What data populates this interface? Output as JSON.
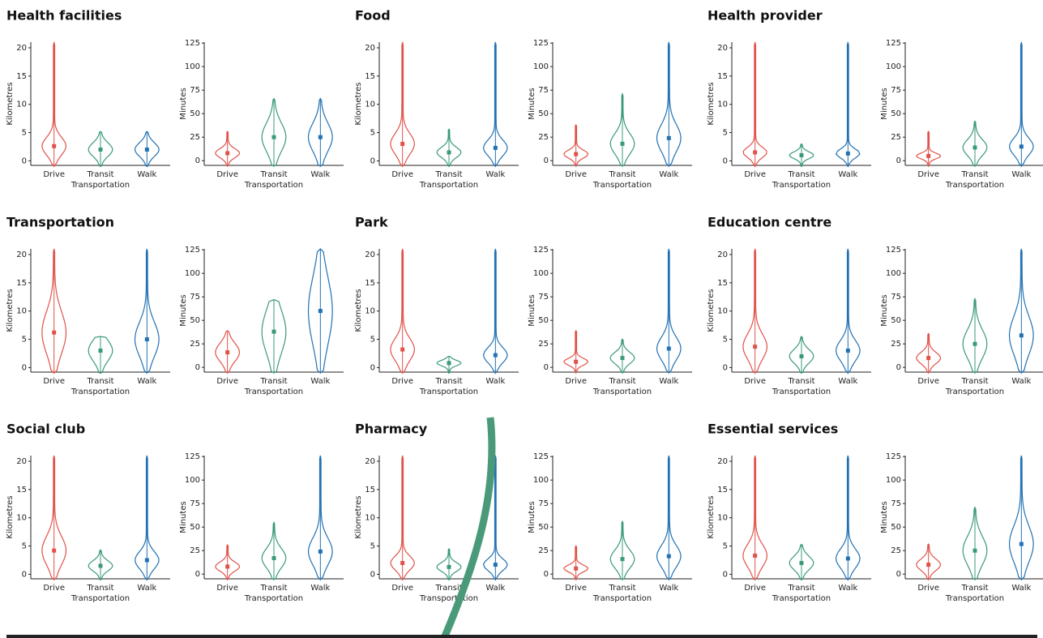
{
  "chart_data": [
    {
      "type": "violin",
      "title": "Health facilities",
      "y_label": "Kilometres",
      "x_label": "Transportation",
      "categories": [
        "Drive",
        "Transit",
        "Walk"
      ],
      "medians": [
        2.6,
        2.0,
        2.0
      ],
      "maxima": [
        21,
        5.2,
        5.2
      ],
      "colors": [
        "#e0524a",
        "#3a9a76",
        "#2271b3"
      ],
      "ylim": [
        -0.8,
        21
      ],
      "yticks": [
        0,
        5,
        10,
        15,
        20
      ]
    },
    {
      "type": "violin",
      "y_label": "Minutes",
      "x_label": "Transportation",
      "categories": [
        "Drive",
        "Transit",
        "Walk"
      ],
      "medians": [
        8,
        25,
        25
      ],
      "maxima": [
        31,
        66,
        66
      ],
      "colors": [
        "#e0524a",
        "#3a9a76",
        "#2271b3"
      ],
      "ylim": [
        -5,
        126
      ],
      "yticks": [
        0,
        25,
        50,
        75,
        100,
        125
      ]
    },
    {
      "type": "violin",
      "title": "Food",
      "y_label": "Kilometres",
      "x_label": "Transportation",
      "categories": [
        "Drive",
        "Transit",
        "Walk"
      ],
      "medians": [
        3.0,
        1.5,
        2.3
      ],
      "maxima": [
        21,
        5.6,
        21
      ],
      "colors": [
        "#e0524a",
        "#3a9a76",
        "#2271b3"
      ],
      "ylim": [
        -0.8,
        21
      ],
      "yticks": [
        0,
        5,
        10,
        15,
        20
      ]
    },
    {
      "type": "violin",
      "y_label": "Minutes",
      "x_label": "Transportation",
      "categories": [
        "Drive",
        "Transit",
        "Walk"
      ],
      "medians": [
        7,
        18,
        24
      ],
      "maxima": [
        38,
        71,
        126
      ],
      "colors": [
        "#e0524a",
        "#3a9a76",
        "#2271b3"
      ],
      "ylim": [
        -5,
        126
      ],
      "yticks": [
        0,
        25,
        50,
        75,
        100,
        125
      ]
    },
    {
      "type": "violin",
      "title": "Health provider",
      "y_label": "Kilometres",
      "x_label": "Transportation",
      "categories": [
        "Drive",
        "Transit",
        "Walk"
      ],
      "medians": [
        1.5,
        1.0,
        1.3
      ],
      "maxima": [
        21,
        3.0,
        21
      ],
      "colors": [
        "#e0524a",
        "#3a9a76",
        "#2271b3"
      ],
      "ylim": [
        -0.8,
        21
      ],
      "yticks": [
        0,
        5,
        10,
        15,
        20
      ]
    },
    {
      "type": "violin",
      "y_label": "Minutes",
      "x_label": "Transportation",
      "categories": [
        "Drive",
        "Transit",
        "Walk"
      ],
      "medians": [
        5,
        14,
        15
      ],
      "maxima": [
        31,
        42,
        126
      ],
      "colors": [
        "#e0524a",
        "#3a9a76",
        "#2271b3"
      ],
      "ylim": [
        -5,
        126
      ],
      "yticks": [
        0,
        25,
        50,
        75,
        100,
        125
      ]
    },
    {
      "type": "violin",
      "title": "Transportation",
      "y_label": "Kilometres",
      "x_label": "Transportation",
      "categories": [
        "Drive",
        "Transit",
        "Walk"
      ],
      "medians": [
        6.2,
        3.0,
        5.0
      ],
      "maxima": [
        21,
        5.5,
        21
      ],
      "colors": [
        "#e0524a",
        "#3a9a76",
        "#2271b3"
      ],
      "ylim": [
        -0.8,
        21
      ],
      "yticks": [
        0,
        5,
        10,
        15,
        20
      ]
    },
    {
      "type": "violin",
      "y_label": "Minutes",
      "x_label": "Transportation",
      "categories": [
        "Drive",
        "Transit",
        "Walk"
      ],
      "medians": [
        16,
        38,
        60
      ],
      "maxima": [
        39,
        72,
        126
      ],
      "colors": [
        "#e0524a",
        "#3a9a76",
        "#2271b3"
      ],
      "ylim": [
        -5,
        126
      ],
      "yticks": [
        0,
        25,
        50,
        75,
        100,
        125
      ]
    },
    {
      "type": "violin",
      "title": "Park",
      "y_label": "Kilometres",
      "x_label": "Transportation",
      "categories": [
        "Drive",
        "Transit",
        "Walk"
      ],
      "medians": [
        3.2,
        0.8,
        2.2
      ],
      "maxima": [
        21,
        2.0,
        21
      ],
      "colors": [
        "#e0524a",
        "#3a9a76",
        "#2271b3"
      ],
      "ylim": [
        -0.8,
        21
      ],
      "yticks": [
        0,
        5,
        10,
        15,
        20
      ]
    },
    {
      "type": "violin",
      "y_label": "Minutes",
      "x_label": "Transportation",
      "categories": [
        "Drive",
        "Transit",
        "Walk"
      ],
      "medians": [
        6,
        10,
        20
      ],
      "maxima": [
        39,
        30,
        126
      ],
      "colors": [
        "#e0524a",
        "#3a9a76",
        "#2271b3"
      ],
      "ylim": [
        -5,
        126
      ],
      "yticks": [
        0,
        25,
        50,
        75,
        100,
        125
      ]
    },
    {
      "type": "violin",
      "title": "Education centre",
      "y_label": "Kilometres",
      "x_label": "Transportation",
      "categories": [
        "Drive",
        "Transit",
        "Walk"
      ],
      "medians": [
        3.7,
        2.0,
        3.0
      ],
      "maxima": [
        21,
        5.5,
        21
      ],
      "colors": [
        "#e0524a",
        "#3a9a76",
        "#2271b3"
      ],
      "ylim": [
        -0.8,
        21
      ],
      "yticks": [
        0,
        5,
        10,
        15,
        20
      ]
    },
    {
      "type": "violin",
      "y_label": "Minutes",
      "x_label": "Transportation",
      "categories": [
        "Drive",
        "Transit",
        "Walk"
      ],
      "medians": [
        10,
        25,
        34
      ],
      "maxima": [
        36,
        73,
        126
      ],
      "colors": [
        "#e0524a",
        "#3a9a76",
        "#2271b3"
      ],
      "ylim": [
        -5,
        126
      ],
      "yticks": [
        0,
        25,
        50,
        75,
        100,
        125
      ]
    },
    {
      "type": "violin",
      "title": "Social club",
      "y_label": "Kilometres",
      "x_label": "Transportation",
      "categories": [
        "Drive",
        "Transit",
        "Walk"
      ],
      "medians": [
        4.2,
        1.5,
        2.5
      ],
      "maxima": [
        21,
        4.3,
        21
      ],
      "colors": [
        "#e0524a",
        "#3a9a76",
        "#2271b3"
      ],
      "ylim": [
        -0.8,
        21
      ],
      "yticks": [
        0,
        5,
        10,
        15,
        20
      ]
    },
    {
      "type": "violin",
      "y_label": "Minutes",
      "x_label": "Transportation",
      "categories": [
        "Drive",
        "Transit",
        "Walk"
      ],
      "medians": [
        8,
        17,
        24
      ],
      "maxima": [
        31,
        55,
        126
      ],
      "colors": [
        "#e0524a",
        "#3a9a76",
        "#2271b3"
      ],
      "ylim": [
        -5,
        126
      ],
      "yticks": [
        0,
        25,
        50,
        75,
        100,
        125
      ]
    },
    {
      "type": "violin",
      "title": "Pharmacy",
      "y_label": "Kilometres",
      "x_label": "Transportation",
      "categories": [
        "Drive",
        "Transit",
        "Walk"
      ],
      "medians": [
        2.0,
        1.3,
        1.7
      ],
      "maxima": [
        21,
        4.5,
        21
      ],
      "colors": [
        "#e0524a",
        "#3a9a76",
        "#2271b3"
      ],
      "ylim": [
        -0.8,
        21
      ],
      "yticks": [
        0,
        5,
        10,
        15,
        20
      ]
    },
    {
      "type": "violin",
      "y_label": "Minutes",
      "x_label": "Transportation",
      "categories": [
        "Drive",
        "Transit",
        "Walk"
      ],
      "medians": [
        6,
        16,
        19
      ],
      "maxima": [
        30,
        56,
        126
      ],
      "colors": [
        "#e0524a",
        "#3a9a76",
        "#2271b3"
      ],
      "ylim": [
        -5,
        126
      ],
      "yticks": [
        0,
        25,
        50,
        75,
        100,
        125
      ]
    },
    {
      "type": "violin",
      "title": "Essential services",
      "y_label": "Kilometres",
      "x_label": "Transportation",
      "categories": [
        "Drive",
        "Transit",
        "Walk"
      ],
      "medians": [
        3.3,
        2.0,
        2.8
      ],
      "maxima": [
        21,
        5.3,
        21
      ],
      "colors": [
        "#e0524a",
        "#3a9a76",
        "#2271b3"
      ],
      "ylim": [
        -0.8,
        21
      ],
      "yticks": [
        0,
        5,
        10,
        15,
        20
      ]
    },
    {
      "type": "violin",
      "y_label": "Minutes",
      "x_label": "Transportation",
      "categories": [
        "Drive",
        "Transit",
        "Walk"
      ],
      "medians": [
        10,
        25,
        32
      ],
      "maxima": [
        32,
        71,
        126
      ],
      "colors": [
        "#e0524a",
        "#3a9a76",
        "#2271b3"
      ],
      "ylim": [
        -5,
        126
      ],
      "yticks": [
        0,
        25,
        50,
        75,
        100,
        125
      ]
    }
  ]
}
